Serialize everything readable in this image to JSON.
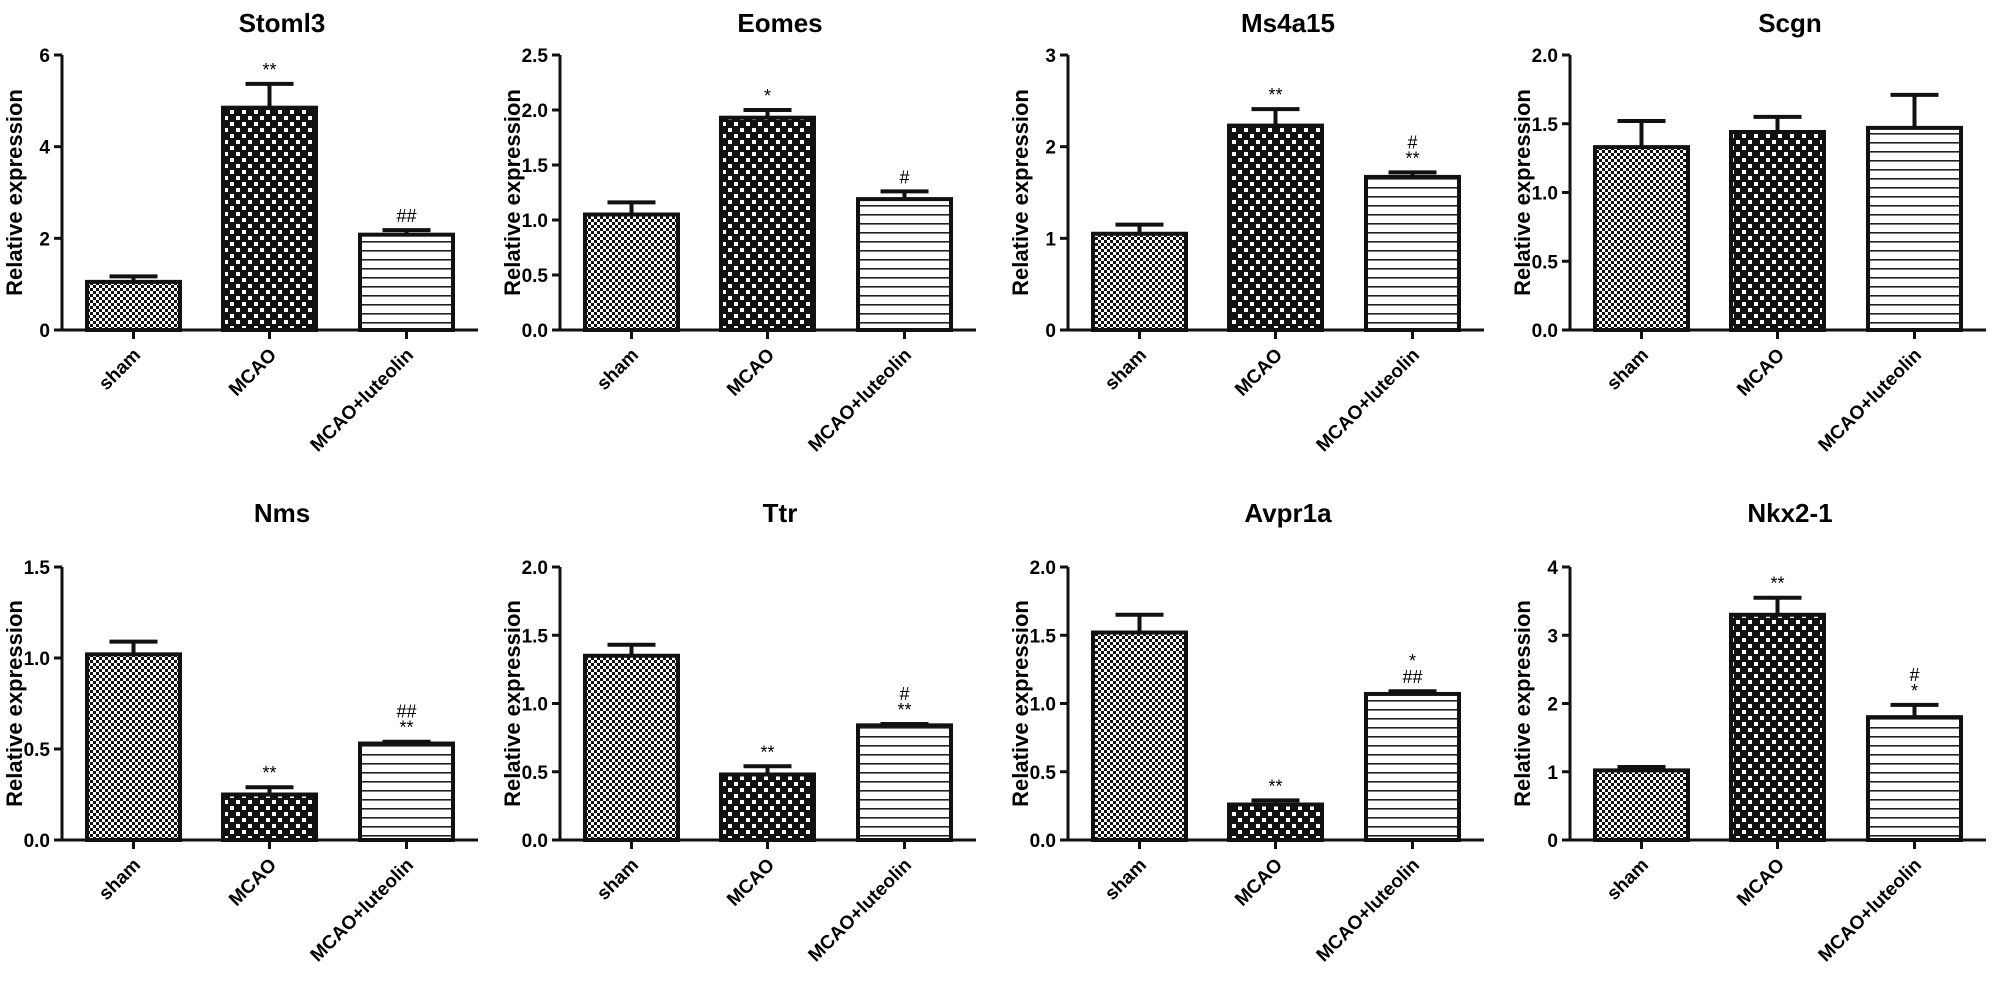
{
  "chart_data": [
    {
      "type": "bar",
      "title": "Stoml3",
      "ylabel": "Relative expression",
      "ylim": [
        0,
        6
      ],
      "yticks": [
        "0",
        "2",
        "4",
        "6"
      ],
      "categories": [
        "sham",
        "MCAO",
        "MCAO+luteolin"
      ],
      "values": [
        1.05,
        4.85,
        2.08
      ],
      "errors": [
        0.12,
        0.52,
        0.1
      ],
      "significance": [
        [],
        [
          "**"
        ],
        [
          "##"
        ]
      ]
    },
    {
      "type": "bar",
      "title": "Eomes",
      "ylabel": "Relative expression",
      "ylim": [
        0,
        2.5
      ],
      "yticks": [
        "0.0",
        "0.5",
        "1.0",
        "1.5",
        "2.0",
        "2.5"
      ],
      "categories": [
        "sham",
        "MCAO",
        "MCAO+luteolin"
      ],
      "values": [
        1.05,
        1.93,
        1.19
      ],
      "errors": [
        0.11,
        0.07,
        0.07
      ],
      "significance": [
        [],
        [
          "*"
        ],
        [
          "#"
        ]
      ]
    },
    {
      "type": "bar",
      "title": "Ms4a15",
      "ylabel": "Relative expression",
      "ylim": [
        0,
        3
      ],
      "yticks": [
        "0",
        "1",
        "2",
        "3"
      ],
      "categories": [
        "sham",
        "MCAO",
        "MCAO+luteolin"
      ],
      "values": [
        1.05,
        2.23,
        1.67
      ],
      "errors": [
        0.1,
        0.18,
        0.05
      ],
      "significance": [
        [],
        [
          "**"
        ],
        [
          "#",
          "**"
        ]
      ]
    },
    {
      "type": "bar",
      "title": "Scgn",
      "ylabel": "Relative expression",
      "ylim": [
        0,
        2.0
      ],
      "yticks": [
        "0.0",
        "0.5",
        "1.0",
        "1.5",
        "2.0"
      ],
      "categories": [
        "sham",
        "MCAO",
        "MCAO+luteolin"
      ],
      "values": [
        1.33,
        1.44,
        1.47
      ],
      "errors": [
        0.19,
        0.11,
        0.24
      ],
      "significance": [
        [],
        [],
        []
      ]
    },
    {
      "type": "bar",
      "title": "Nms",
      "ylabel": "Relative expression",
      "ylim": [
        0,
        1.5
      ],
      "yticks": [
        "0.0",
        "0.5",
        "1.0",
        "1.5"
      ],
      "categories": [
        "sham",
        "MCAO",
        "MCAO+luteolin"
      ],
      "values": [
        1.02,
        0.25,
        0.53
      ],
      "errors": [
        0.07,
        0.04,
        0.01
      ],
      "significance": [
        [],
        [
          "**"
        ],
        [
          "##",
          "**"
        ]
      ]
    },
    {
      "type": "bar",
      "title": "Ttr",
      "ylabel": "Relative expression",
      "ylim": [
        0,
        2.0
      ],
      "yticks": [
        "0.0",
        "0.5",
        "1.0",
        "1.5",
        "2.0"
      ],
      "categories": [
        "sham",
        "MCAO",
        "MCAO+luteolin"
      ],
      "values": [
        1.35,
        0.48,
        0.84
      ],
      "errors": [
        0.08,
        0.06,
        0.01
      ],
      "significance": [
        [],
        [
          "**"
        ],
        [
          "#",
          "**"
        ]
      ]
    },
    {
      "type": "bar",
      "title": "Avpr1a",
      "ylabel": "Relative expression",
      "ylim": [
        0,
        2.0
      ],
      "yticks": [
        "0.0",
        "0.5",
        "1.0",
        "1.5",
        "2.0"
      ],
      "categories": [
        "sham",
        "MCAO",
        "MCAO+luteolin"
      ],
      "values": [
        1.52,
        0.26,
        1.07
      ],
      "errors": [
        0.13,
        0.03,
        0.02
      ],
      "significance": [
        [],
        [
          "**"
        ],
        [
          "*",
          "##"
        ]
      ]
    },
    {
      "type": "bar",
      "title": "Nkx2-1",
      "ylabel": "Relative expression",
      "ylim": [
        0,
        4
      ],
      "yticks": [
        "0",
        "1",
        "2",
        "3",
        "4"
      ],
      "categories": [
        "sham",
        "MCAO",
        "MCAO+luteolin"
      ],
      "values": [
        1.02,
        3.3,
        1.8
      ],
      "errors": [
        0.05,
        0.25,
        0.18
      ],
      "significance": [
        [],
        [
          "**"
        ],
        [
          "#",
          "*"
        ]
      ]
    }
  ]
}
